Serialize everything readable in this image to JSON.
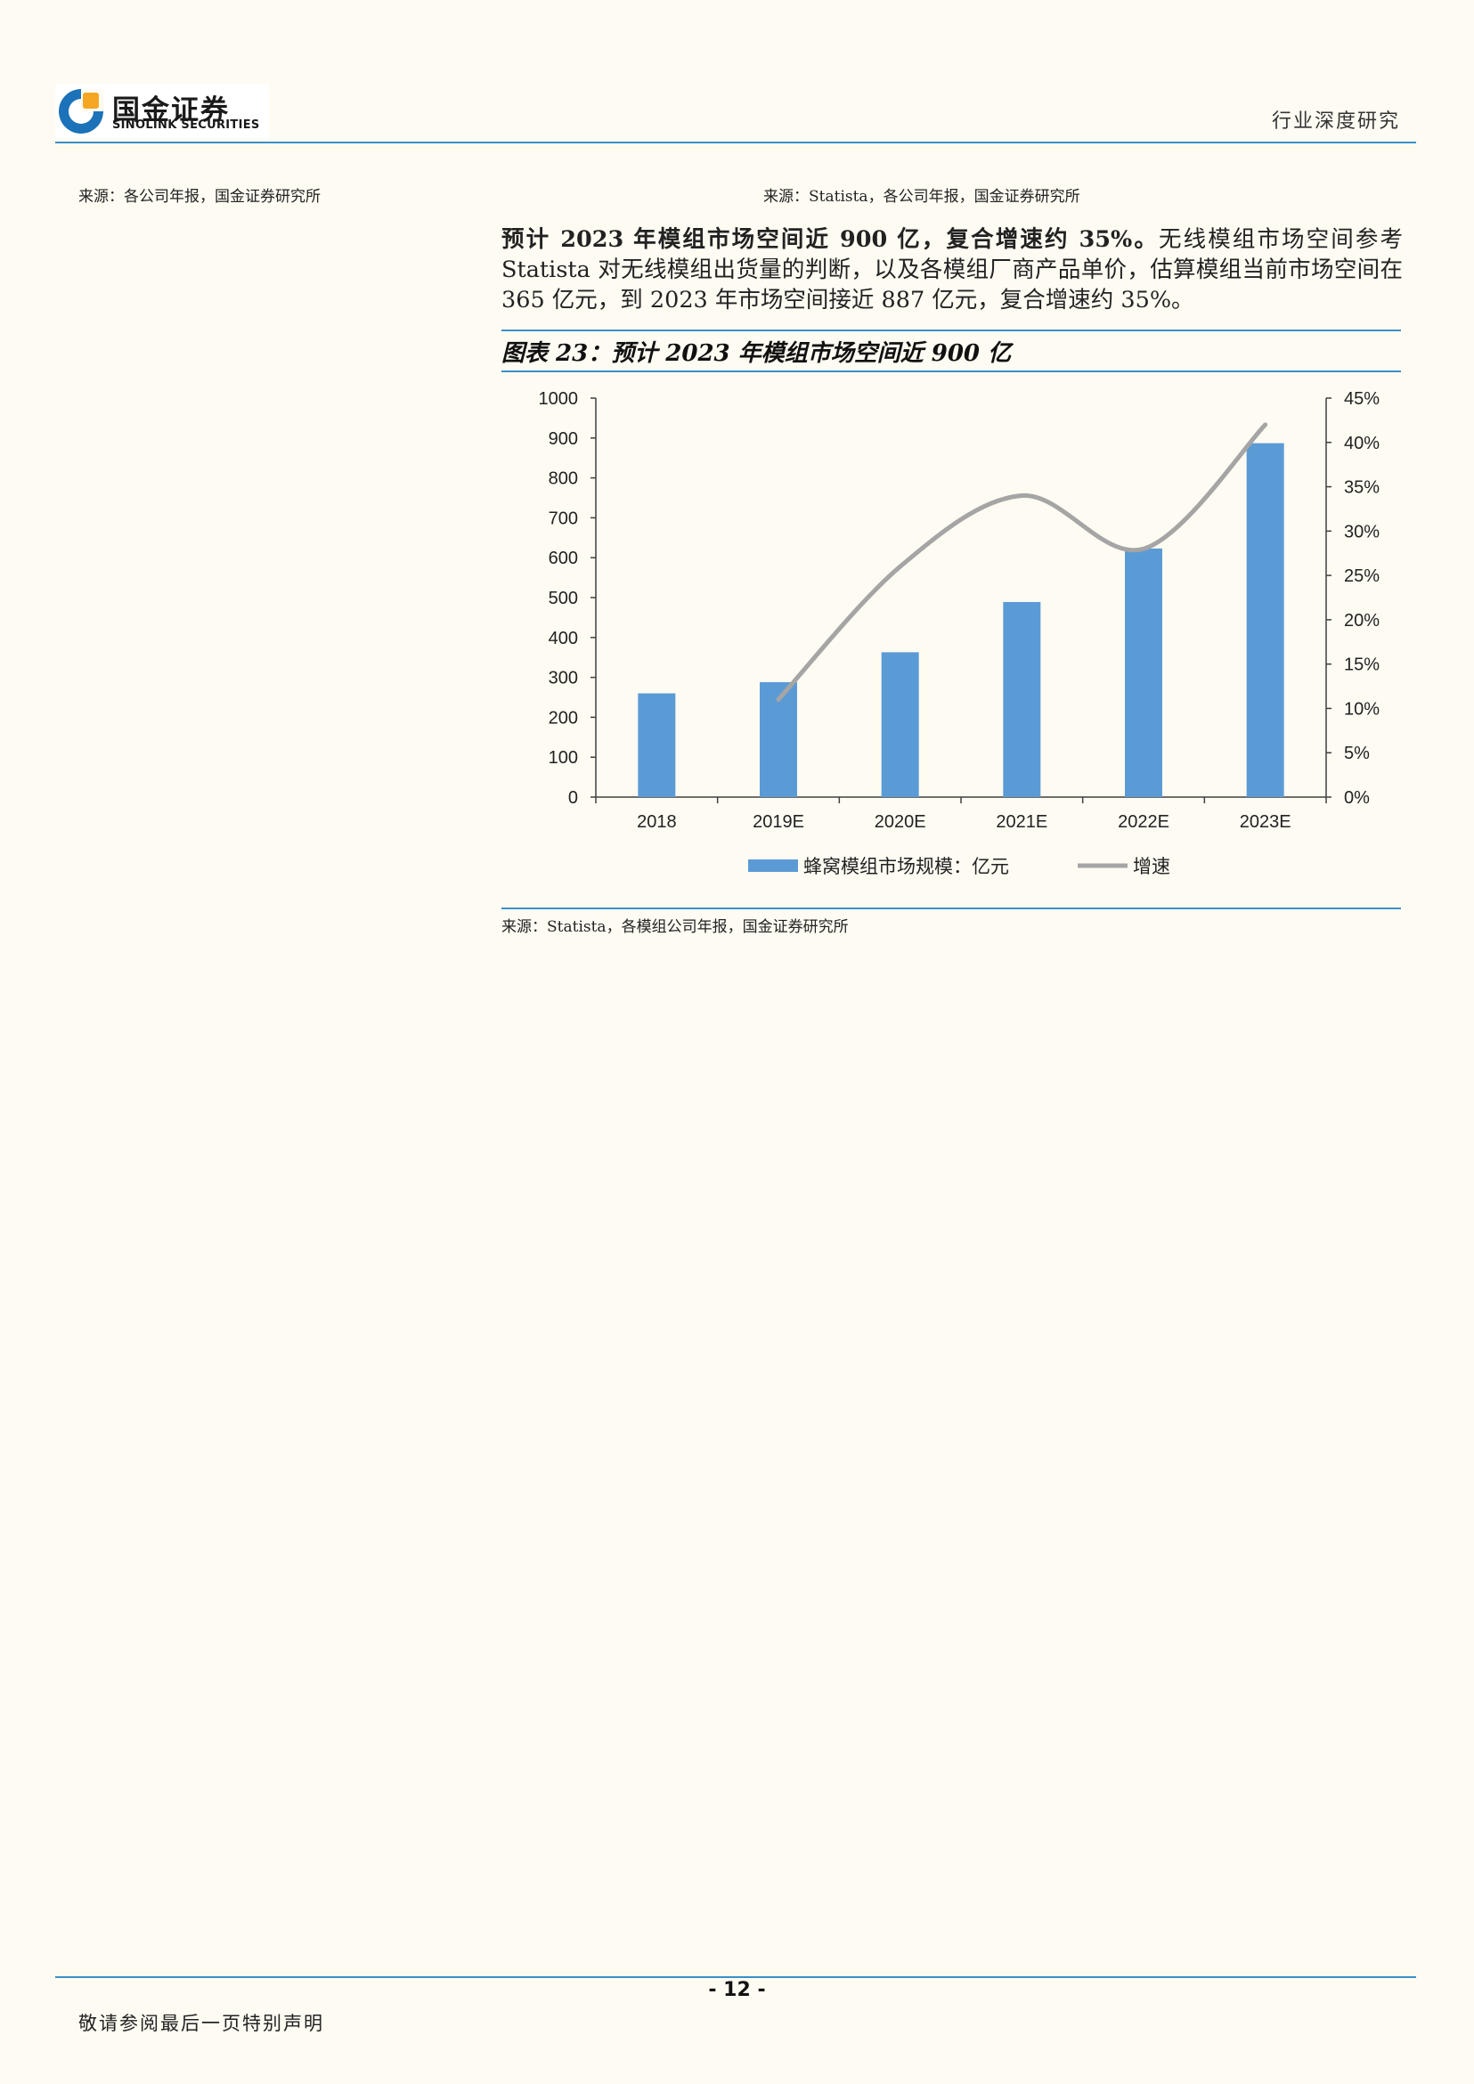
{
  "header": {
    "logo_cn": "国金证券",
    "logo_en": "SINOLINK SECURITIES",
    "report_type": "行业深度研究"
  },
  "sources": {
    "left": "来源：各公司年报，国金证券研究所",
    "right": "来源：Statista，各公司年报，国金证券研究所"
  },
  "paragraph": {
    "lead": "预计 2023 年模组市场空间近 900 亿，复合增速约 35%。",
    "body": "无线模组市场空间参考 Statista 对无线模组出货量的判断，以及各模组厂商产品单价，估算模组当前市场空间在 365 亿元，到 2023 年市场空间接近 887 亿元，复合增速约 35%。"
  },
  "figure": {
    "title": "图表 23：预计 2023 年模组市场空间近 900 亿",
    "source": "来源：Statista，各模组公司年报，国金证券研究所"
  },
  "chart_data": {
    "type": "bar",
    "categories": [
      "2018",
      "2019E",
      "2020E",
      "2021E",
      "2022E",
      "2023E"
    ],
    "series": [
      {
        "name": "蜂窝模组市场规模：亿元",
        "type": "bar",
        "axis": "left",
        "values": [
          260,
          288,
          363,
          489,
          623,
          887
        ],
        "color": "#5b9bd5"
      },
      {
        "name": "增速",
        "type": "line",
        "axis": "right",
        "values": [
          null,
          0.11,
          0.26,
          0.34,
          0.28,
          0.42
        ],
        "color": "#a5a5a5"
      }
    ],
    "y_left": {
      "min": 0,
      "max": 1000,
      "ticks": [
        "0",
        "100",
        "200",
        "300",
        "400",
        "500",
        "600",
        "700",
        "800",
        "900",
        "1000"
      ]
    },
    "y_right": {
      "min": 0,
      "max": 0.45,
      "ticks": [
        "0%",
        "5%",
        "10%",
        "15%",
        "20%",
        "25%",
        "30%",
        "35%",
        "40%",
        "45%"
      ]
    },
    "legend_position": "bottom",
    "grid": false
  },
  "footer": {
    "page": "- 12 -",
    "note": "敬请参阅最后一页特别声明"
  }
}
